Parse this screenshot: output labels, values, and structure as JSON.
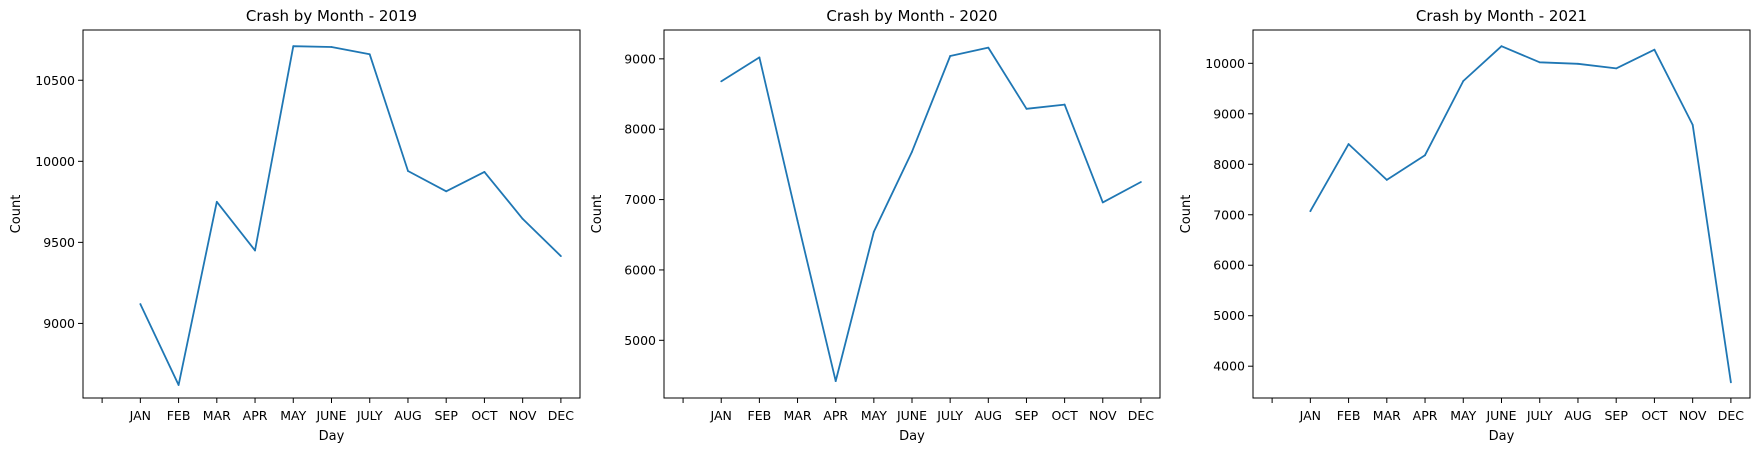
{
  "chart_data": [
    {
      "type": "line",
      "title": "Crash by Month - 2019",
      "xlabel": "Day",
      "ylabel": "Count",
      "categories": [
        "JAN",
        "FEB",
        "MAR",
        "APR",
        "MAY",
        "JUNE",
        "JULY",
        "AUG",
        "SEP",
        "OCT",
        "NOV",
        "DEC"
      ],
      "series": [
        {
          "values": [
            9120,
            8620,
            9750,
            9450,
            10710,
            10705,
            10660,
            9940,
            9815,
            9935,
            9645,
            9415
          ]
        }
      ],
      "ylim": [
        8540,
        10810
      ],
      "yticks": [
        9000,
        9500,
        10000,
        10500
      ],
      "ytick_labels": [
        "9000",
        "9500",
        "10000",
        "10500"
      ],
      "grid": false,
      "color": "#1f77b4"
    },
    {
      "type": "line",
      "title": "Crash by Month - 2020",
      "xlabel": "Day",
      "ylabel": "Count",
      "categories": [
        "JAN",
        "FEB",
        "MAR",
        "APR",
        "MAY",
        "JUNE",
        "JULY",
        "AUG",
        "SEP",
        "OCT",
        "NOV",
        "DEC"
      ],
      "series": [
        {
          "values": [
            8680,
            9020,
            6700,
            4420,
            6540,
            7680,
            9040,
            9160,
            8290,
            8350,
            6960,
            7250
          ]
        }
      ],
      "ylim": [
        4180,
        9410
      ],
      "yticks": [
        5000,
        6000,
        7000,
        8000,
        9000
      ],
      "ytick_labels": [
        "5000",
        "6000",
        "7000",
        "8000",
        "9000"
      ],
      "grid": false,
      "color": "#1f77b4"
    },
    {
      "type": "line",
      "title": "Crash by Month - 2021",
      "xlabel": "Day",
      "ylabel": "Count",
      "categories": [
        "JAN",
        "FEB",
        "MAR",
        "APR",
        "MAY",
        "JUNE",
        "JULY",
        "AUG",
        "SEP",
        "OCT",
        "NOV",
        "DEC"
      ],
      "series": [
        {
          "values": [
            7070,
            8400,
            7690,
            8180,
            9650,
            10340,
            10020,
            9990,
            9900,
            10270,
            8780,
            3680
          ]
        }
      ],
      "ylim": [
        3370,
        10660
      ],
      "yticks": [
        4000,
        5000,
        6000,
        7000,
        8000,
        9000,
        10000
      ],
      "ytick_labels": [
        "4000",
        "5000",
        "6000",
        "7000",
        "8000",
        "9000",
        "10000"
      ],
      "grid": false,
      "color": "#1f77b4"
    }
  ]
}
